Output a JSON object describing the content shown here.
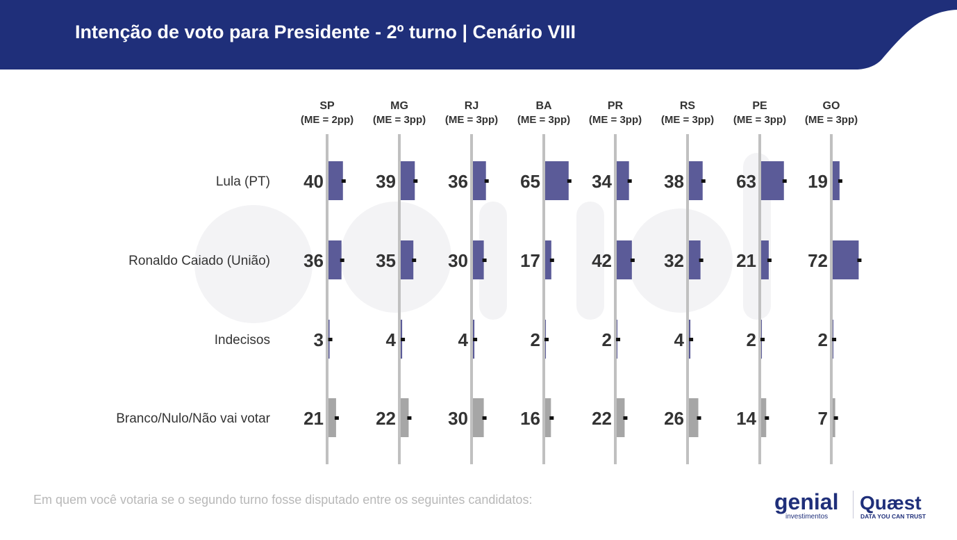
{
  "header": {
    "title": "Intenção de voto para Presidente - 2º turno | Cenário VIII",
    "color": "#1f2f7a"
  },
  "footnote": "Em quem você votaria se o segundo turno fosse disputado entre os seguintes candidatos:",
  "logos": {
    "genial_name": "genial",
    "genial_sub": "investimentos",
    "quaest_name": "Quæst",
    "quaest_tagline": "DATA YOU CAN TRUST"
  },
  "chart_data": {
    "type": "bar",
    "orientation": "horizontal",
    "panels": [
      {
        "name": "SP",
        "margin": "(ME = 2pp)"
      },
      {
        "name": "MG",
        "margin": "(ME = 3pp)"
      },
      {
        "name": "RJ",
        "margin": "(ME = 3pp)"
      },
      {
        "name": "BA",
        "margin": "(ME = 3pp)"
      },
      {
        "name": "PR",
        "margin": "(ME = 3pp)"
      },
      {
        "name": "RS",
        "margin": "(ME = 3pp)"
      },
      {
        "name": "PE",
        "margin": "(ME = 3pp)"
      },
      {
        "name": "GO",
        "margin": "(ME = 3pp)"
      }
    ],
    "categories": [
      "Lula (PT)",
      "Ronaldo Caiado (União)",
      "Indecisos",
      "Branco/Nulo/Não vai votar"
    ],
    "series": [
      {
        "values": [
          [
            40,
            39,
            36,
            65,
            34,
            38,
            63,
            19
          ]
        ]
      }
    ],
    "rows": [
      {
        "label": "Lula (PT)",
        "values": [
          40,
          39,
          36,
          65,
          34,
          38,
          63,
          19
        ],
        "color": "#5b5b98"
      },
      {
        "label": "Ronaldo Caiado (União)",
        "values": [
          36,
          35,
          30,
          17,
          42,
          32,
          21,
          72
        ],
        "color": "#5b5b98"
      },
      {
        "label": "Indecisos",
        "values": [
          3,
          4,
          4,
          2,
          2,
          4,
          2,
          2
        ],
        "color": "#5b5b98"
      },
      {
        "label": "Branco/Nulo/Não vai votar",
        "values": [
          21,
          22,
          30,
          16,
          22,
          26,
          14,
          7
        ],
        "color": "#a6a6a6"
      }
    ],
    "xlim": [
      0,
      100
    ],
    "value_unit": "%"
  }
}
